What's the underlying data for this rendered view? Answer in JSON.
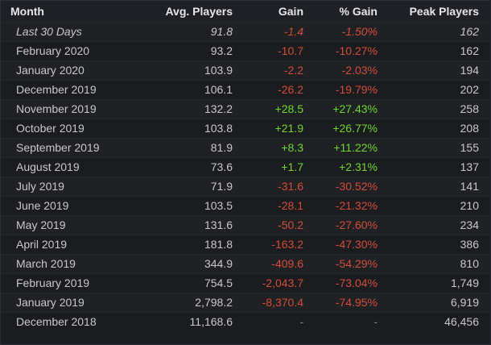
{
  "headers": {
    "month": "Month",
    "avg": "Avg. Players",
    "gain": "Gain",
    "pct": "% Gain",
    "peak": "Peak Players"
  },
  "colors": {
    "positive": "#6fd62c",
    "negative": "#d24d36",
    "neutral": "#8a8a8a"
  },
  "rows": [
    {
      "month": "Last 30 Days",
      "avg": "91.8",
      "gain": "-1.4",
      "pct": "-1.50%",
      "peak": "162",
      "trend": "neg",
      "current": true
    },
    {
      "month": "February 2020",
      "avg": "93.2",
      "gain": "-10.7",
      "pct": "-10.27%",
      "peak": "162",
      "trend": "neg"
    },
    {
      "month": "January 2020",
      "avg": "103.9",
      "gain": "-2.2",
      "pct": "-2.03%",
      "peak": "194",
      "trend": "neg"
    },
    {
      "month": "December 2019",
      "avg": "106.1",
      "gain": "-26.2",
      "pct": "-19.79%",
      "peak": "202",
      "trend": "neg"
    },
    {
      "month": "November 2019",
      "avg": "132.2",
      "gain": "+28.5",
      "pct": "+27.43%",
      "peak": "258",
      "trend": "pos"
    },
    {
      "month": "October 2019",
      "avg": "103.8",
      "gain": "+21.9",
      "pct": "+26.77%",
      "peak": "208",
      "trend": "pos"
    },
    {
      "month": "September 2019",
      "avg": "81.9",
      "gain": "+8.3",
      "pct": "+11.22%",
      "peak": "155",
      "trend": "pos"
    },
    {
      "month": "August 2019",
      "avg": "73.6",
      "gain": "+1.7",
      "pct": "+2.31%",
      "peak": "137",
      "trend": "pos"
    },
    {
      "month": "July 2019",
      "avg": "71.9",
      "gain": "-31.6",
      "pct": "-30.52%",
      "peak": "141",
      "trend": "neg"
    },
    {
      "month": "June 2019",
      "avg": "103.5",
      "gain": "-28.1",
      "pct": "-21.32%",
      "peak": "210",
      "trend": "neg"
    },
    {
      "month": "May 2019",
      "avg": "131.6",
      "gain": "-50.2",
      "pct": "-27.60%",
      "peak": "234",
      "trend": "neg"
    },
    {
      "month": "April 2019",
      "avg": "181.8",
      "gain": "-163.2",
      "pct": "-47.30%",
      "peak": "386",
      "trend": "neg"
    },
    {
      "month": "March 2019",
      "avg": "344.9",
      "gain": "-409.6",
      "pct": "-54.29%",
      "peak": "810",
      "trend": "neg"
    },
    {
      "month": "February 2019",
      "avg": "754.5",
      "gain": "-2,043.7",
      "pct": "-73.04%",
      "peak": "1,749",
      "trend": "neg"
    },
    {
      "month": "January 2019",
      "avg": "2,798.2",
      "gain": "-8,370.4",
      "pct": "-74.95%",
      "peak": "6,919",
      "trend": "neg"
    },
    {
      "month": "December 2018",
      "avg": "11,168.6",
      "gain": "-",
      "pct": "-",
      "peak": "46,456",
      "trend": "neu"
    }
  ]
}
